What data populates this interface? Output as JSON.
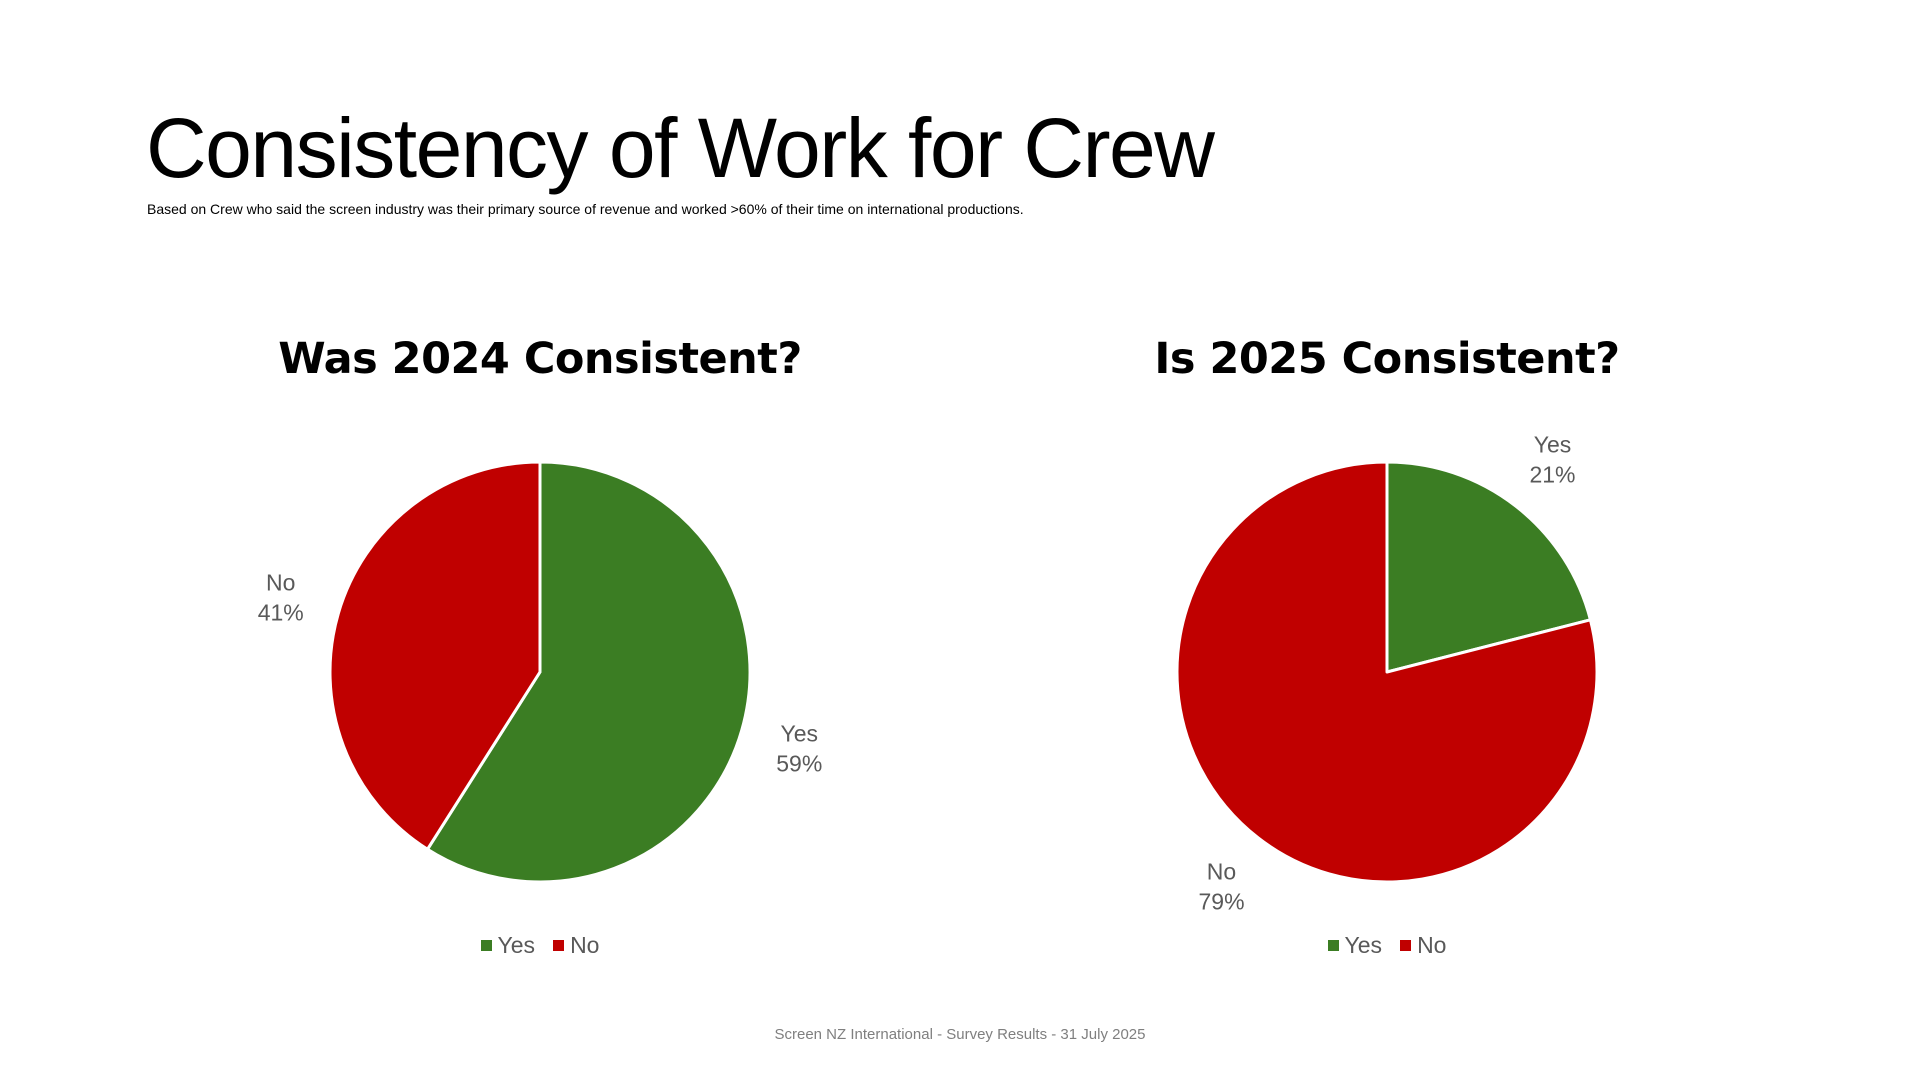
{
  "title": "Consistency of Work for Crew",
  "subtitle": "Based on Crew who said the screen industry was their primary source of revenue and worked >60% of their time on international productions.",
  "footer": "Screen NZ International - Survey Results - 31 July 2025",
  "colors": {
    "yes": "#3B7D23",
    "no": "#C00000"
  },
  "chart_data": [
    {
      "type": "pie",
      "title": "Was 2024 Consistent?",
      "categories": [
        "Yes",
        "No"
      ],
      "values": [
        59,
        41
      ],
      "labels": [
        "59%",
        "41%"
      ],
      "legend": "bottom"
    },
    {
      "type": "pie",
      "title": "Is 2025 Consistent?",
      "categories": [
        "Yes",
        "No"
      ],
      "values": [
        21,
        79
      ],
      "labels": [
        "21%",
        "79%"
      ],
      "legend": "bottom"
    }
  ]
}
